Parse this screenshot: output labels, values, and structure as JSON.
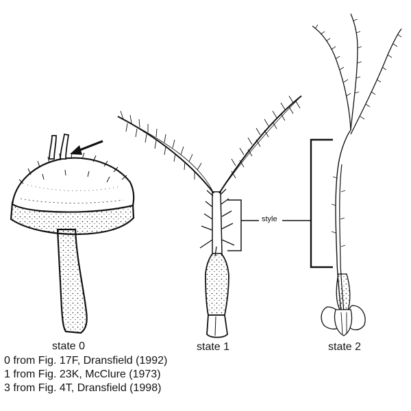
{
  "states": [
    {
      "label": "state 0"
    },
    {
      "label": "state 1"
    },
    {
      "label": "state 2"
    }
  ],
  "annotation": {
    "style_label": "style"
  },
  "credits": [
    "0 from Fig. 17F, Dransfield (1992)",
    "1 from Fig. 23K, McClure (1973)",
    "3 from Fig. 4T, Dransfield (1998)"
  ],
  "colors": {
    "ink": "#111111",
    "paper": "#ffffff"
  }
}
